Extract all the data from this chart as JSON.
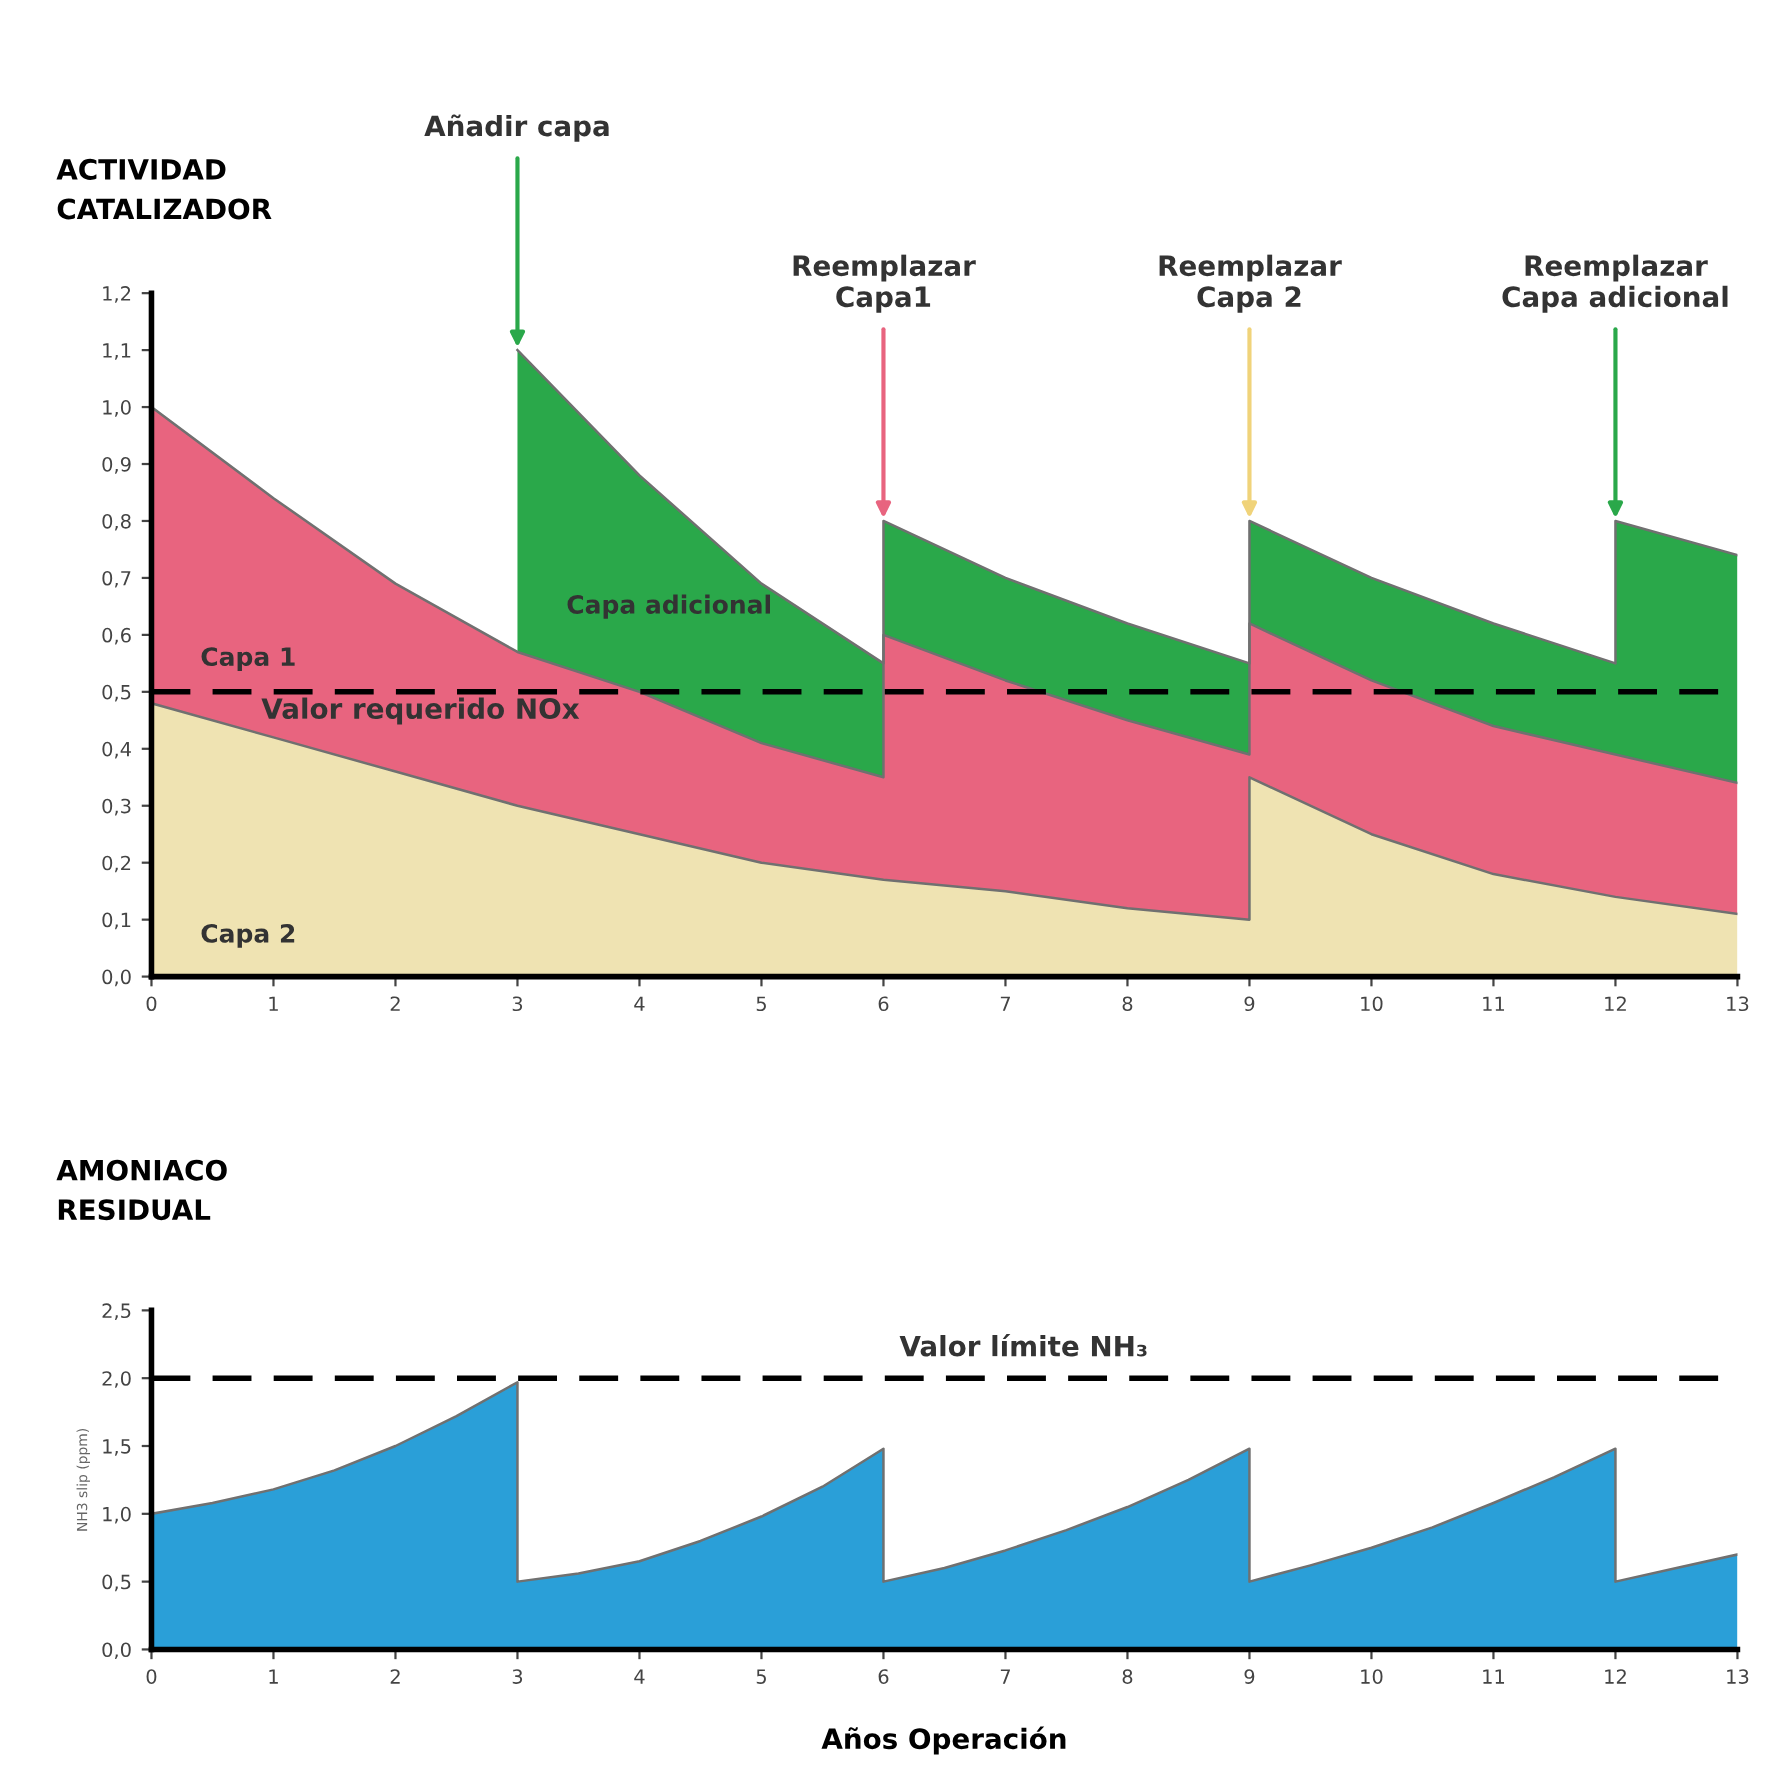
{
  "chart_data": [
    {
      "type": "area",
      "stacked": true,
      "title": "ACTIVIDAD\nCATALIZADOR",
      "x": [
        0,
        1,
        2,
        3,
        3,
        4,
        5,
        6,
        6,
        7,
        8,
        9,
        9,
        10,
        11,
        12,
        12,
        13
      ],
      "series": [
        {
          "name": "Capa 2",
          "color": "#efe3b2",
          "values": [
            0.48,
            0.42,
            0.36,
            0.3,
            0.3,
            0.25,
            0.2,
            0.17,
            0.17,
            0.15,
            0.12,
            0.1,
            0.35,
            0.25,
            0.18,
            0.14,
            0.14,
            0.11
          ]
        },
        {
          "name": "Capa 1",
          "color": "#e8647f",
          "values": [
            0.52,
            0.42,
            0.33,
            0.27,
            0.27,
            0.25,
            0.21,
            0.18,
            0.43,
            0.37,
            0.33,
            0.29,
            0.27,
            0.27,
            0.26,
            0.25,
            0.25,
            0.23
          ]
        },
        {
          "name": "Capa adicional",
          "color": "#2aa84a",
          "values": [
            null,
            null,
            null,
            null,
            0.53,
            0.38,
            0.28,
            0.2,
            0.2,
            0.18,
            0.17,
            0.16,
            0.18,
            0.18,
            0.18,
            0.16,
            0.41,
            0.4
          ]
        }
      ],
      "xlim": [
        0,
        13
      ],
      "xticks": [
        0,
        1,
        2,
        3,
        4,
        5,
        6,
        7,
        8,
        9,
        10,
        11,
        12,
        13
      ],
      "ylim": [
        0,
        1.2
      ],
      "yticks": [
        {
          "value": 0,
          "label": "0,0"
        },
        {
          "value": 0.1,
          "label": "0,1"
        },
        {
          "value": 0.2,
          "label": "0,2"
        },
        {
          "value": 0.3,
          "label": "0,3"
        },
        {
          "value": 0.4,
          "label": "0,4"
        },
        {
          "value": 0.5,
          "label": "0,5"
        },
        {
          "value": 0.6,
          "label": "0,6"
        },
        {
          "value": 0.7,
          "label": "0,7"
        },
        {
          "value": 0.8,
          "label": "0,8"
        },
        {
          "value": 0.9,
          "label": "0,9"
        },
        {
          "value": 1.0,
          "label": "1,0"
        },
        {
          "value": 1.1,
          "label": "1,1"
        },
        {
          "value": 1.2,
          "label": "1,2"
        }
      ],
      "ref_lines": [
        {
          "axis": "y",
          "value": 0.5,
          "label": "Valor requerido NOx",
          "color": "#000000",
          "line_style": "dashed"
        }
      ],
      "annotations": [
        {
          "text": "Añadir capa",
          "x": 3,
          "y": 1.1
        },
        {
          "text": "Reemplazar\nCapa1",
          "x": 6,
          "y": 0.8
        },
        {
          "text": "Reemplazar\nCapa 2",
          "x": 9,
          "y": 0.8
        },
        {
          "text": "Reemplazar\nCapa adicional",
          "x": 12,
          "y": 0.8
        }
      ],
      "grid": false,
      "legend": false
    },
    {
      "type": "area",
      "title": "AMONIACO\nRESIDUAL",
      "ylabel": "NH3 slip (ppm)",
      "xlabel": "Años Operación",
      "x": [
        0,
        0.5,
        1,
        1.5,
        2,
        2.5,
        3,
        3,
        3.5,
        4,
        4.5,
        5,
        5.5,
        6,
        6,
        6.5,
        7,
        7.5,
        8,
        8.5,
        9,
        9,
        9.5,
        10,
        10.5,
        11,
        11.5,
        12,
        12,
        12.5,
        13
      ],
      "series": [
        {
          "color": "#2a9fd8",
          "values": [
            1.0,
            1.08,
            1.18,
            1.32,
            1.5,
            1.72,
            1.97,
            0.5,
            0.56,
            0.65,
            0.8,
            0.98,
            1.2,
            1.48,
            0.5,
            0.6,
            0.73,
            0.88,
            1.05,
            1.25,
            1.48,
            0.5,
            0.62,
            0.75,
            0.9,
            1.08,
            1.27,
            1.48,
            0.5,
            0.6,
            0.7
          ]
        }
      ],
      "xlim": [
        0,
        13
      ],
      "xticks": [
        0,
        1,
        2,
        3,
        4,
        5,
        6,
        7,
        8,
        9,
        10,
        11,
        12,
        13
      ],
      "ylim": [
        0,
        2.5
      ],
      "yticks": [
        {
          "value": 0,
          "label": "0,0"
        },
        {
          "value": 0.5,
          "label": "0,5"
        },
        {
          "value": 1.0,
          "label": "1,0"
        },
        {
          "value": 1.5,
          "label": "1,5"
        },
        {
          "value": 2.0,
          "label": "2,0"
        },
        {
          "value": 2.5,
          "label": "2,5"
        }
      ],
      "ref_lines": [
        {
          "axis": "y",
          "value": 2.0,
          "label": "Valor límite NH₃",
          "color": "#000000",
          "line_style": "dashed"
        }
      ],
      "grid": false,
      "legend": false
    }
  ]
}
